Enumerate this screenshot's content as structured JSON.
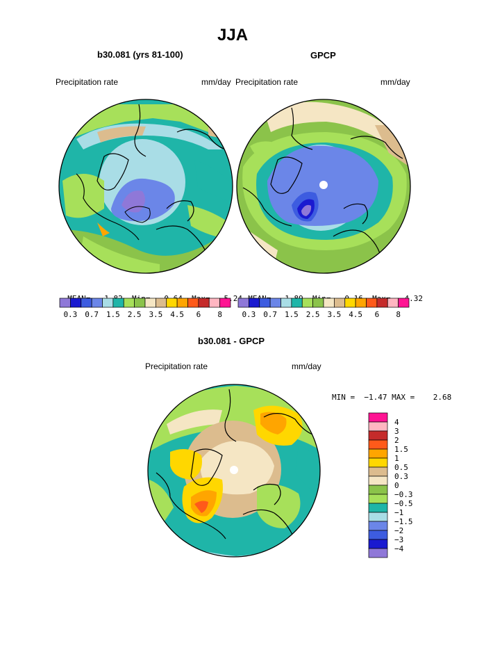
{
  "page_title": "JJA",
  "colors": {
    "ocean_teal": "#1fb5a8",
    "light_green": "#a7e05a",
    "light_blue": "#a9dde6",
    "mid_blue": "#6b86e8",
    "deep_blue": "#1a1ad0",
    "olive_green": "#8bc34a",
    "tan": "#dcbc8e",
    "cream": "#f5e6c4"
  },
  "panels": {
    "model": {
      "title": "b30.081 (yrs 81-100)",
      "left_label": "Precipitation rate",
      "right_label": "mm/day",
      "stats": {
        "mean_label": "MEAN=",
        "mean": "1.82",
        "min_label": "Min=",
        "min": "0.64",
        "max_label": "Max=",
        "max": "5.24"
      }
    },
    "obs": {
      "title": "GPCP",
      "left_label": "Precipitation rate",
      "right_label": "mm/day",
      "stats": {
        "mean_label": "MEAN=",
        "mean": "1.89",
        "min_label": "Min=",
        "min": "0.16",
        "max_label": "Max=",
        "max": "4.32"
      }
    },
    "diff": {
      "title": "b30.081 - GPCP",
      "left_label": "Precipitation rate",
      "right_label": "mm/day",
      "minmax_text": "MIN =  −1.47 MAX =    2.68"
    }
  },
  "chart_data": [
    {
      "type": "heatmap",
      "title": "b30.081 (yrs 81-100)",
      "projection": "polar stereographic, North Pole",
      "variable": "Precipitation rate",
      "units": "mm/day",
      "mean": 1.82,
      "min": 0.64,
      "max": 5.24,
      "colorbar_colors": [
        "#8f78d8",
        "#1a1ad0",
        "#3d5ce0",
        "#6b86e8",
        "#a9dde6",
        "#1fb5a8",
        "#a7e05a",
        "#8bc34a",
        "#f5e6c4",
        "#dcbc8e",
        "#ffd700",
        "#ffa500",
        "#ff5a1a",
        "#c52b2b",
        "#ffb6c1",
        "#ff1493"
      ],
      "colorbar_labels": [
        "0.3",
        "0.7",
        "1.5",
        "2.5",
        "3.5",
        "4.5",
        "6",
        "8"
      ]
    },
    {
      "type": "heatmap",
      "title": "GPCP",
      "projection": "polar stereographic, North Pole",
      "variable": "Precipitation rate",
      "units": "mm/day",
      "mean": 1.89,
      "min": 0.16,
      "max": 4.32,
      "colorbar_colors": [
        "#8f78d8",
        "#1a1ad0",
        "#3d5ce0",
        "#6b86e8",
        "#a9dde6",
        "#1fb5a8",
        "#a7e05a",
        "#8bc34a",
        "#f5e6c4",
        "#dcbc8e",
        "#ffd700",
        "#ffa500",
        "#ff5a1a",
        "#c52b2b",
        "#ffb6c1",
        "#ff1493"
      ],
      "colorbar_labels": [
        "0.3",
        "0.7",
        "1.5",
        "2.5",
        "3.5",
        "4.5",
        "6",
        "8"
      ]
    },
    {
      "type": "heatmap",
      "title": "b30.081 - GPCP",
      "projection": "polar stereographic, North Pole",
      "variable": "Precipitation rate",
      "units": "mm/day",
      "min": -1.47,
      "max": 2.68,
      "colorbar_colors": [
        "#ff1493",
        "#ffb6c1",
        "#c52b2b",
        "#ff5a1a",
        "#ffa500",
        "#ffd700",
        "#dcbc8e",
        "#f5e6c4",
        "#8bc34a",
        "#a7e05a",
        "#1fb5a8",
        "#a9dde6",
        "#6b86e8",
        "#3d5ce0",
        "#1a1ad0",
        "#8f78d8"
      ],
      "colorbar_labels": [
        "4",
        "3",
        "2",
        "1.5",
        "1",
        "0.5",
        "0.3",
        "0",
        "−0.3",
        "−0.5",
        "−1",
        "−1.5",
        "−2",
        "−3",
        "−4"
      ]
    }
  ]
}
